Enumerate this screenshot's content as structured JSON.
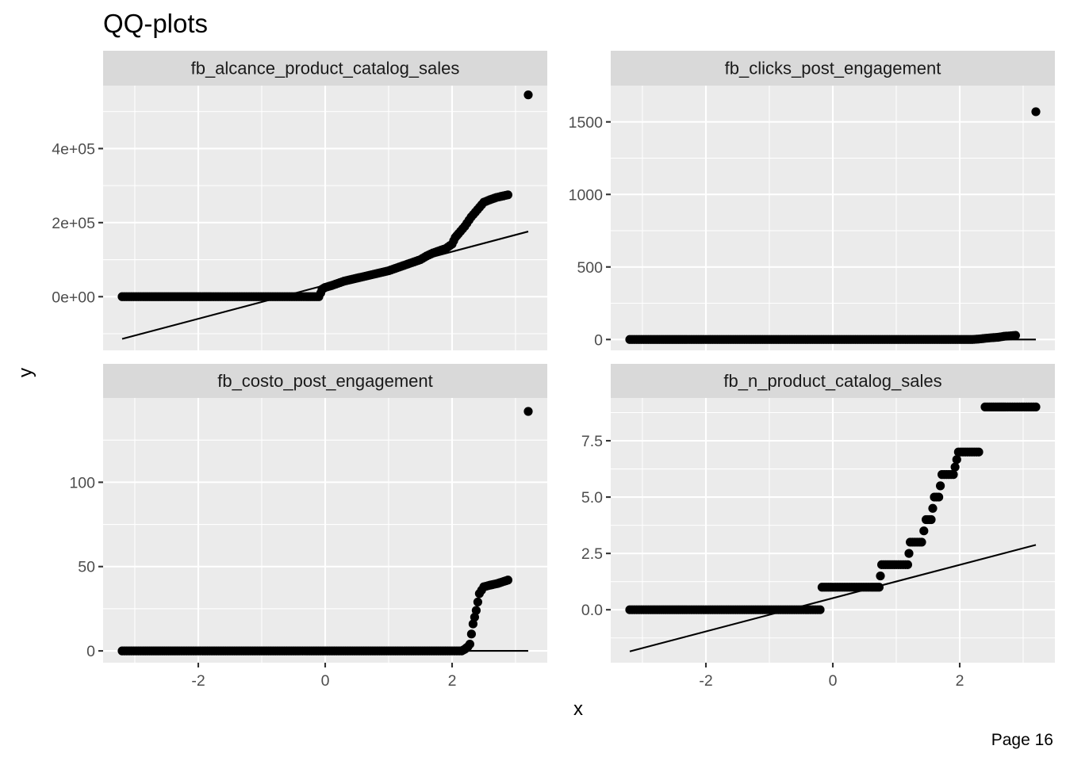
{
  "title": "QQ-plots",
  "footer": "Page 16",
  "chart_data": {
    "type": "scatter",
    "xlabel": "x",
    "ylabel": "y",
    "facets": [
      {
        "strip": "fb_alcance_product_catalog_sales",
        "xlim": [
          -3.5,
          3.5
        ],
        "ylim": [
          -145000,
          570000
        ],
        "y_ticks": [
          0,
          200000,
          400000
        ],
        "y_tick_labels": [
          "0e+00",
          "2e+05",
          "4e+05"
        ],
        "x_ticks": [
          -2,
          0,
          2
        ],
        "x_tick_labels": [
          "-2",
          "0",
          "2"
        ],
        "show_x_labels": false,
        "line": [
          [
            -3.2,
            -114000
          ],
          [
            3.2,
            176000
          ]
        ],
        "points": [
          [
            -3.2,
            0
          ],
          [
            -2.87,
            0
          ],
          [
            -2.7,
            0
          ],
          [
            -2.6,
            0
          ],
          [
            -2.5,
            0
          ],
          [
            -2.4,
            0
          ],
          [
            -2.3,
            0
          ],
          [
            -2.2,
            0
          ],
          [
            -2.1,
            0
          ],
          [
            -2.0,
            0
          ],
          [
            -1.8,
            0
          ],
          [
            -1.5,
            0
          ],
          [
            -1.2,
            0
          ],
          [
            -0.9,
            0
          ],
          [
            -0.6,
            0
          ],
          [
            -0.3,
            0
          ],
          [
            -0.1,
            0
          ],
          [
            -0.07,
            10000
          ],
          [
            -0.05,
            20000
          ],
          [
            0.0,
            25000
          ],
          [
            0.1,
            30000
          ],
          [
            0.2,
            36000
          ],
          [
            0.3,
            42000
          ],
          [
            0.4,
            46000
          ],
          [
            0.5,
            50000
          ],
          [
            0.6,
            54000
          ],
          [
            0.7,
            58000
          ],
          [
            0.8,
            62000
          ],
          [
            0.9,
            66000
          ],
          [
            1.0,
            70000
          ],
          [
            1.1,
            76000
          ],
          [
            1.2,
            82000
          ],
          [
            1.3,
            88000
          ],
          [
            1.4,
            94000
          ],
          [
            1.5,
            100000
          ],
          [
            1.6,
            110000
          ],
          [
            1.7,
            118000
          ],
          [
            1.8,
            124000
          ],
          [
            1.9,
            130000
          ],
          [
            2.0,
            142000
          ],
          [
            2.05,
            160000
          ],
          [
            2.1,
            170000
          ],
          [
            2.2,
            190000
          ],
          [
            2.3,
            215000
          ],
          [
            2.4,
            235000
          ],
          [
            2.5,
            255000
          ],
          [
            2.6,
            262000
          ],
          [
            2.7,
            268000
          ],
          [
            2.88,
            275000
          ],
          [
            3.2,
            545000
          ]
        ]
      },
      {
        "strip": "fb_clicks_post_engagement",
        "xlim": [
          -3.5,
          3.5
        ],
        "ylim": [
          -75,
          1750
        ],
        "y_ticks": [
          0,
          500,
          1000,
          1500
        ],
        "y_tick_labels": [
          "0",
          "500",
          "1000",
          "1500"
        ],
        "x_ticks": [
          -2,
          0,
          2
        ],
        "x_tick_labels": [
          "-2",
          "0",
          "2"
        ],
        "show_x_labels": false,
        "line": [
          [
            -3.2,
            0
          ],
          [
            3.2,
            0
          ]
        ],
        "points": [
          [
            -3.2,
            0
          ],
          [
            -2.87,
            0
          ],
          [
            -2.7,
            0
          ],
          [
            -2.6,
            0
          ],
          [
            -2.5,
            0
          ],
          [
            -2.3,
            0
          ],
          [
            -2.0,
            0
          ],
          [
            -1.5,
            0
          ],
          [
            -1.0,
            0
          ],
          [
            -0.5,
            0
          ],
          [
            0.0,
            0
          ],
          [
            0.5,
            0
          ],
          [
            1.0,
            0
          ],
          [
            1.5,
            0
          ],
          [
            2.0,
            0
          ],
          [
            2.2,
            0
          ],
          [
            2.3,
            3
          ],
          [
            2.4,
            8
          ],
          [
            2.5,
            12
          ],
          [
            2.6,
            15
          ],
          [
            2.7,
            22
          ],
          [
            2.88,
            28
          ],
          [
            3.2,
            1570
          ]
        ]
      },
      {
        "strip": "fb_costo_post_engagement",
        "xlim": [
          -3.5,
          3.5
        ],
        "ylim": [
          -7,
          150
        ],
        "y_ticks": [
          0,
          50,
          100
        ],
        "y_tick_labels": [
          "0",
          "50",
          "100"
        ],
        "x_ticks": [
          -2,
          0,
          2
        ],
        "x_tick_labels": [
          "-2",
          "0",
          "2"
        ],
        "show_x_labels": true,
        "line": [
          [
            -3.2,
            0
          ],
          [
            3.2,
            0
          ]
        ],
        "points": [
          [
            -3.2,
            0
          ],
          [
            -2.87,
            0
          ],
          [
            -2.7,
            0
          ],
          [
            -2.6,
            0
          ],
          [
            -2.5,
            0
          ],
          [
            -2.3,
            0
          ],
          [
            -2.0,
            0
          ],
          [
            -1.5,
            0
          ],
          [
            -1.0,
            0
          ],
          [
            -0.5,
            0
          ],
          [
            0.0,
            0
          ],
          [
            0.5,
            0
          ],
          [
            1.0,
            0
          ],
          [
            1.5,
            0
          ],
          [
            2.0,
            0
          ],
          [
            2.15,
            0
          ],
          [
            2.2,
            1
          ],
          [
            2.25,
            2.5
          ],
          [
            2.28,
            4
          ],
          [
            2.33,
            16
          ],
          [
            2.38,
            24
          ],
          [
            2.43,
            34
          ],
          [
            2.5,
            38
          ],
          [
            2.6,
            39
          ],
          [
            2.72,
            40
          ],
          [
            2.88,
            42
          ],
          [
            3.2,
            142
          ]
        ]
      },
      {
        "strip": "fb_n_product_catalog_sales",
        "xlim": [
          -3.5,
          3.5
        ],
        "ylim": [
          -2.35,
          9.4
        ],
        "y_ticks": [
          0,
          2.5,
          5,
          7.5
        ],
        "y_tick_labels": [
          "0.0",
          "2.5",
          "5.0",
          "7.5"
        ],
        "x_ticks": [
          -2,
          0,
          2
        ],
        "x_tick_labels": [
          "-2",
          "0",
          "2"
        ],
        "show_x_labels": true,
        "line": [
          [
            -3.2,
            -1.85
          ],
          [
            3.2,
            2.88
          ]
        ],
        "points": [
          [
            -3.2,
            0
          ],
          [
            -2.87,
            0
          ],
          [
            -2.7,
            0
          ],
          [
            -2.6,
            0
          ],
          [
            -2.5,
            0
          ],
          [
            -2.3,
            0
          ],
          [
            -2.0,
            0
          ],
          [
            -1.5,
            0
          ],
          [
            -1.0,
            0
          ],
          [
            -0.5,
            0
          ],
          [
            -0.2,
            0
          ],
          [
            -0.17,
            1
          ],
          [
            0.0,
            1
          ],
          [
            0.3,
            1
          ],
          [
            0.6,
            1
          ],
          [
            0.73,
            1
          ],
          [
            0.77,
            2
          ],
          [
            1.0,
            2
          ],
          [
            1.18,
            2
          ],
          [
            1.22,
            3
          ],
          [
            1.4,
            3
          ],
          [
            1.47,
            4
          ],
          [
            1.55,
            4
          ],
          [
            1.6,
            5
          ],
          [
            1.67,
            5
          ],
          [
            1.72,
            6
          ],
          [
            1.9,
            6
          ],
          [
            1.98,
            7
          ],
          [
            2.3,
            7
          ],
          [
            2.4,
            9
          ],
          [
            2.5,
            9
          ],
          [
            2.6,
            9
          ],
          [
            2.72,
            9
          ],
          [
            3.2,
            9
          ]
        ]
      }
    ]
  }
}
